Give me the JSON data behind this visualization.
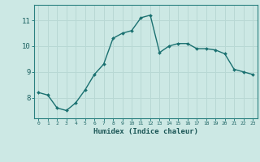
{
  "x": [
    0,
    1,
    2,
    3,
    4,
    5,
    6,
    7,
    8,
    9,
    10,
    11,
    12,
    13,
    14,
    15,
    16,
    17,
    18,
    19,
    20,
    21,
    22,
    23
  ],
  "y": [
    8.2,
    8.1,
    7.6,
    7.5,
    7.8,
    8.3,
    8.9,
    9.3,
    10.3,
    10.5,
    10.6,
    11.1,
    11.2,
    9.75,
    10.0,
    10.1,
    10.1,
    9.9,
    9.9,
    9.85,
    9.7,
    9.1,
    9.0,
    8.9
  ],
  "xlabel": "Humidex (Indice chaleur)",
  "ylabel": "",
  "title": "",
  "bg_color": "#cce8e4",
  "grid_color": "#b8d8d4",
  "line_color": "#1a7070",
  "marker_color": "#1a7070",
  "tick_label_color": "#1a6060",
  "axis_label_color": "#1a5555",
  "xlim": [
    -0.5,
    23.5
  ],
  "ylim": [
    7.2,
    11.6
  ],
  "yticks": [
    8,
    9,
    10,
    11
  ],
  "xticks": [
    0,
    1,
    2,
    3,
    4,
    5,
    6,
    7,
    8,
    9,
    10,
    11,
    12,
    13,
    14,
    15,
    16,
    17,
    18,
    19,
    20,
    21,
    22,
    23
  ]
}
